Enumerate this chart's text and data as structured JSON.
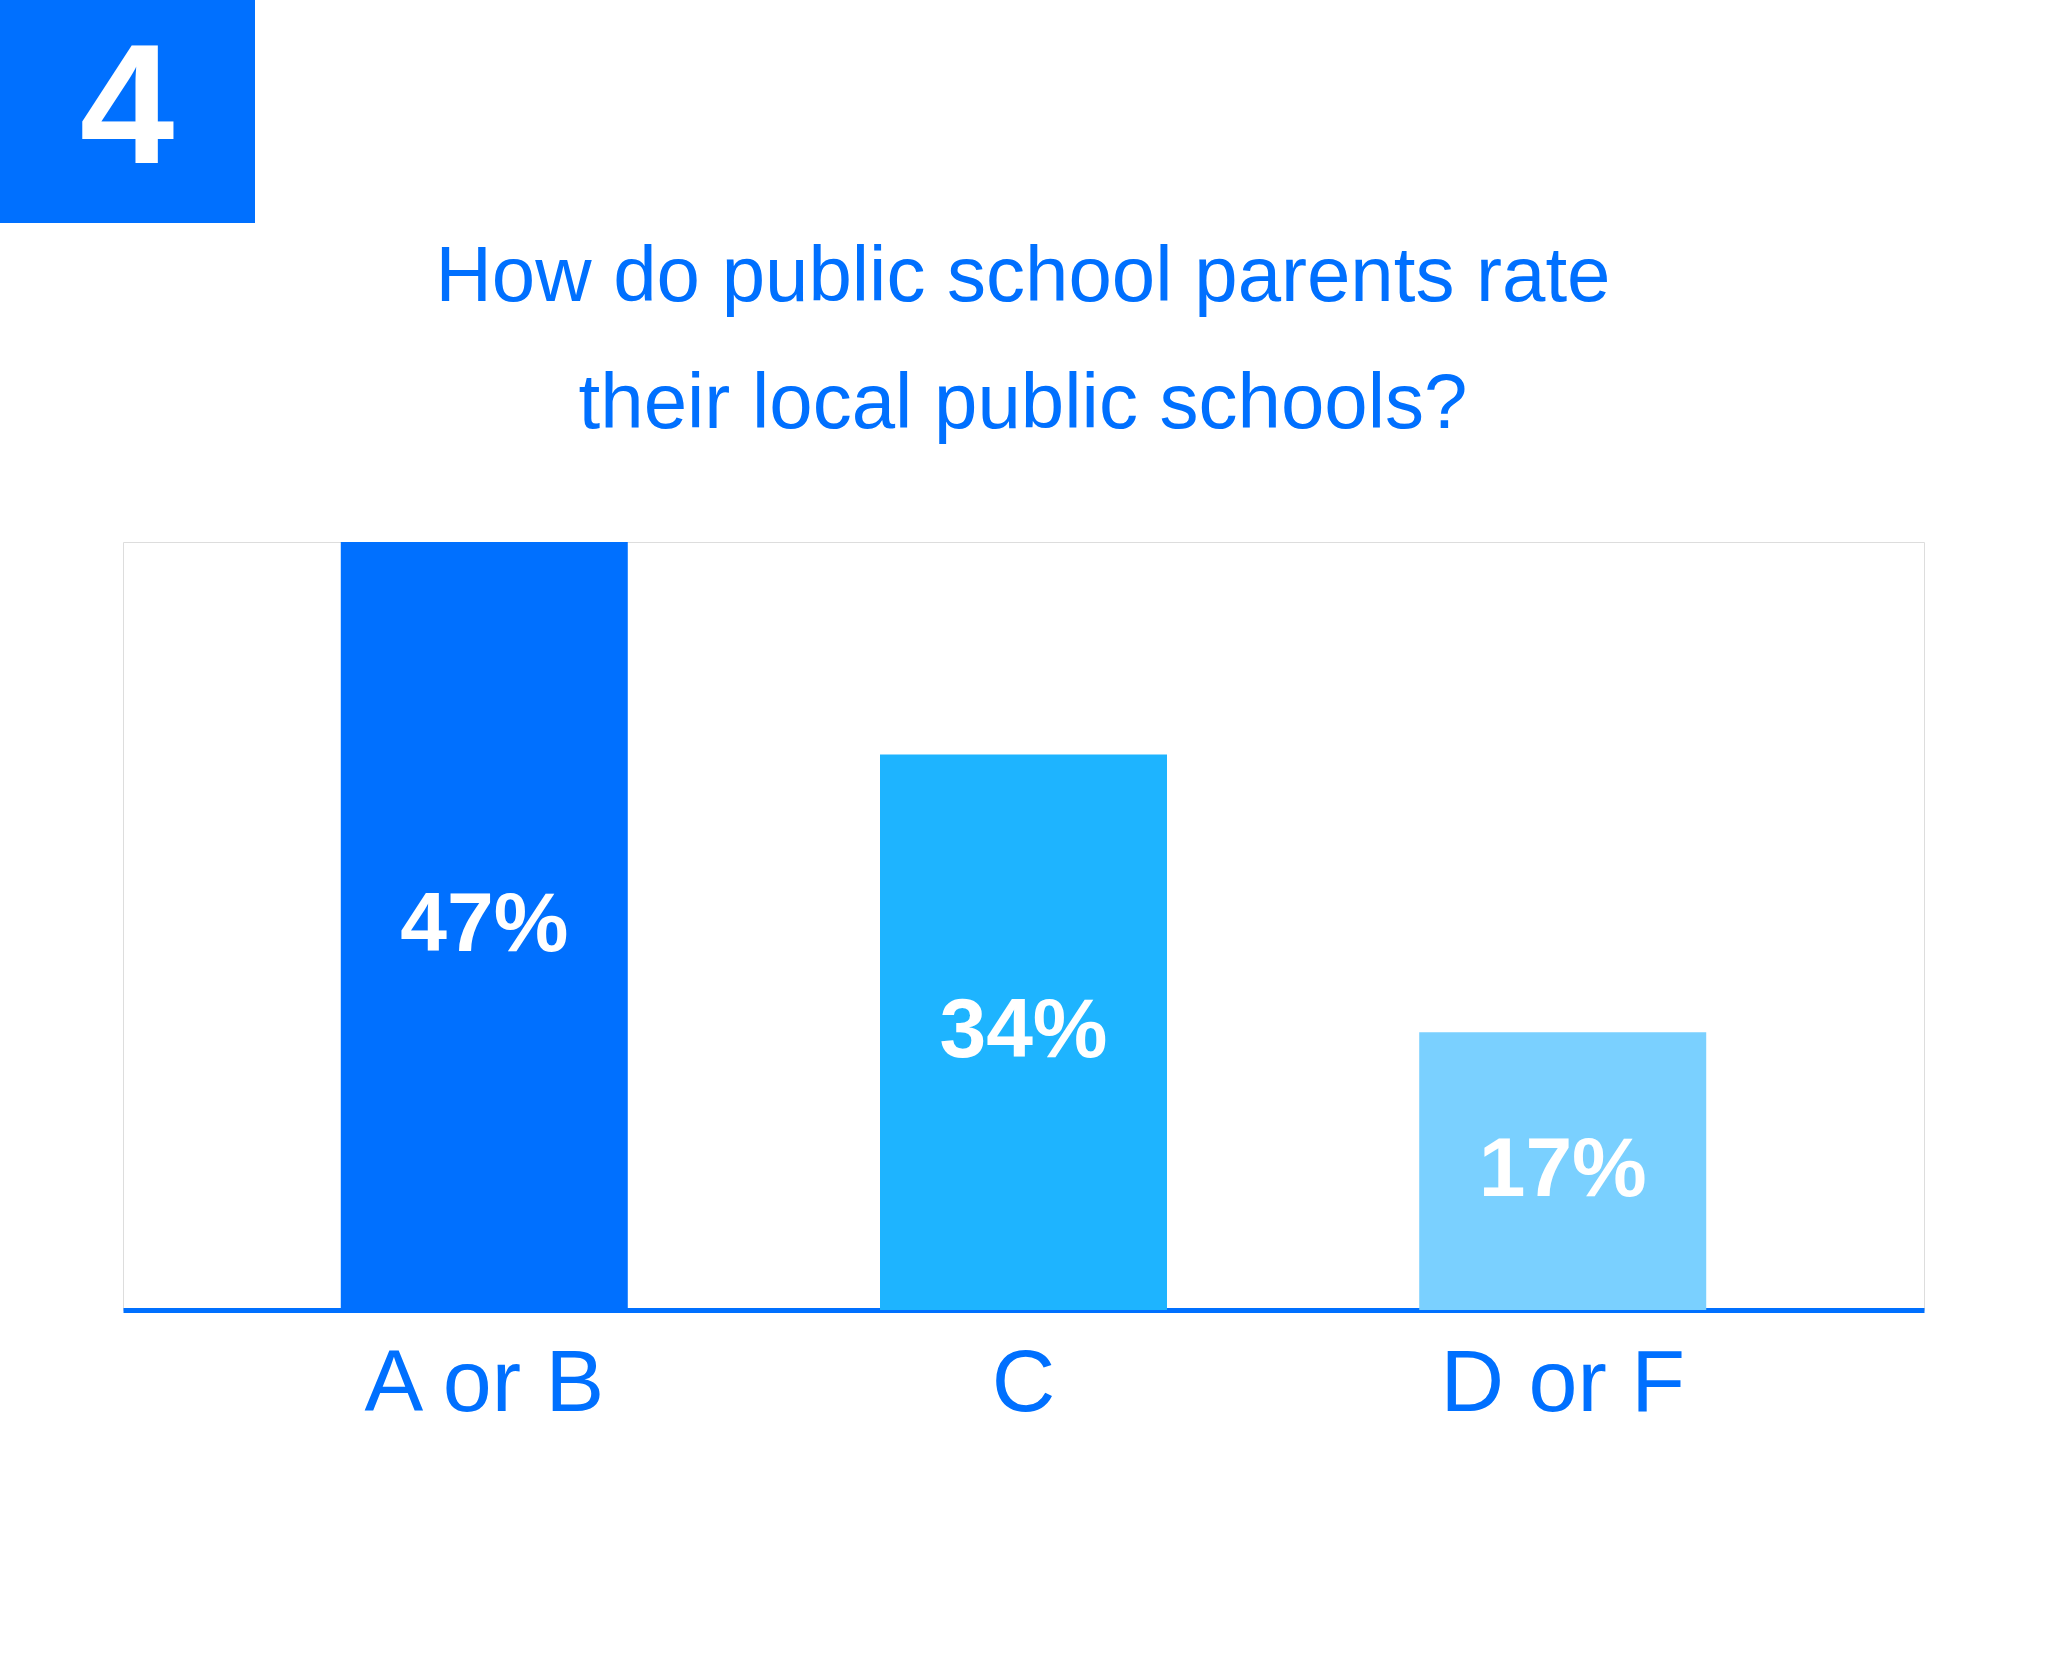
{
  "chart_data": {
    "type": "bar",
    "title": "How do public school parents rate\ntheir local public schools?",
    "categories": [
      "A or B",
      "C",
      "D or F"
    ],
    "values": [
      47,
      34,
      17
    ],
    "colors": [
      "#0070ff",
      "#1eb4ff",
      "#7ad0ff"
    ],
    "value_labels": [
      "47%",
      "34%",
      "17%"
    ],
    "legend": false,
    "annotations": [
      "4"
    ]
  }
}
